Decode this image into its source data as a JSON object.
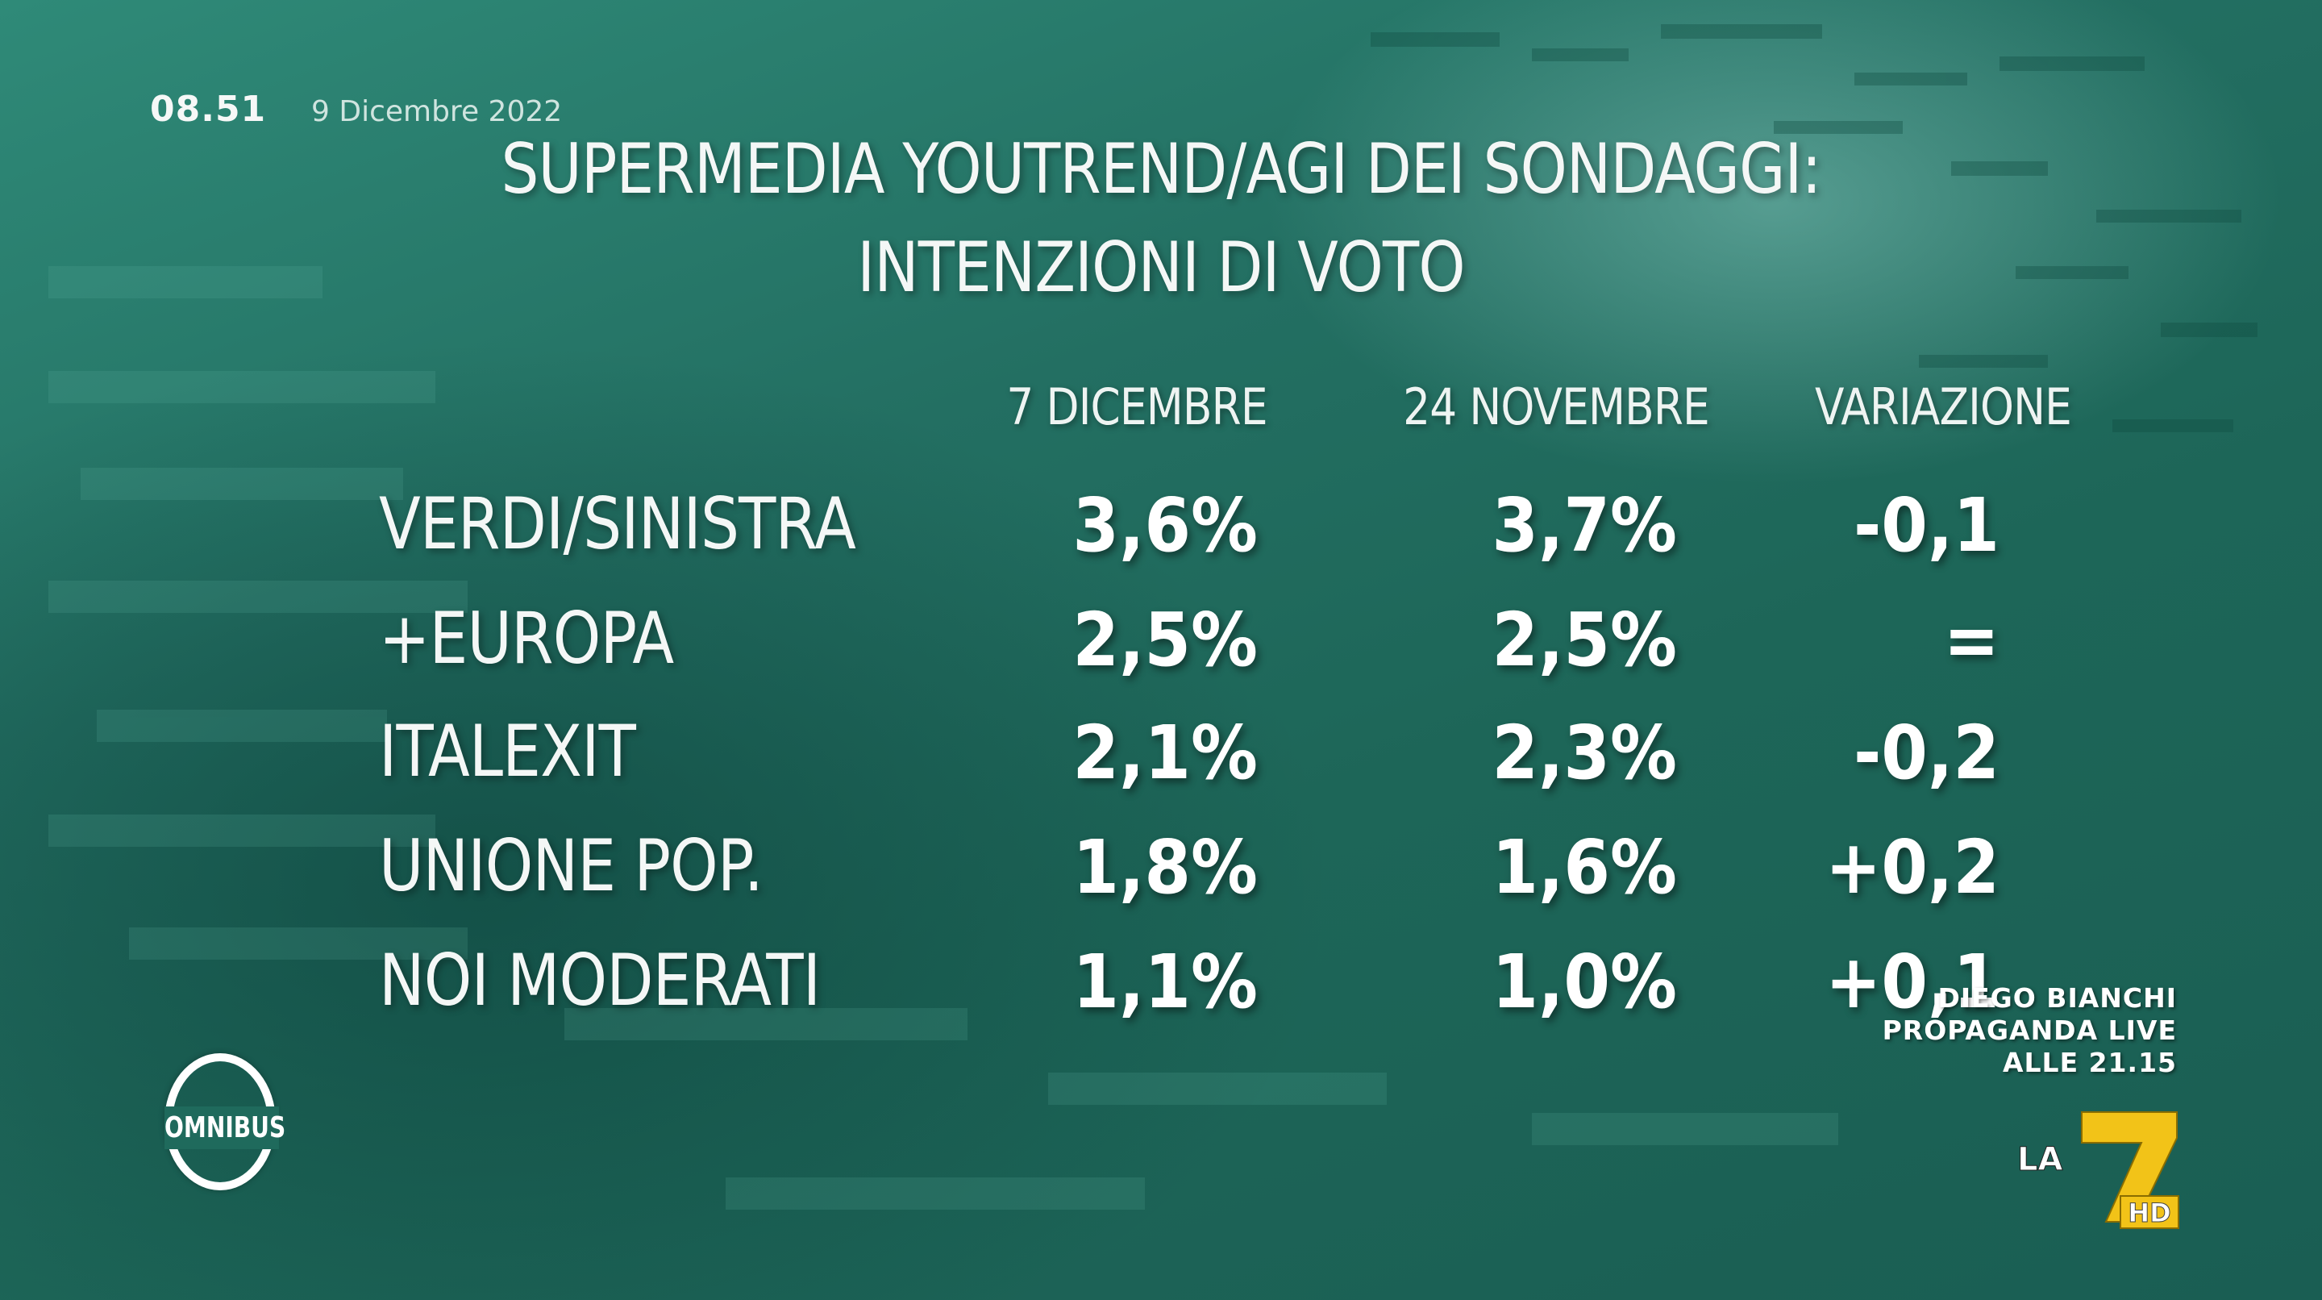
{
  "broadcast": {
    "clock": "08.51",
    "date": "9 Dicembre 2022"
  },
  "title": {
    "line1": "SUPERMEDIA YOUTREND/AGI DEI SONDAGGI:",
    "line2": "INTENZIONI DI VOTO"
  },
  "table": {
    "columns": [
      "7 DICEMBRE",
      "24 NOVEMBRE",
      "VARIAZIONE"
    ],
    "rows": [
      {
        "party": "VERDI/SINISTRA",
        "dec7": "3,6%",
        "nov24": "3,7%",
        "change": "-0,1"
      },
      {
        "party": "+EUROPA",
        "dec7": "2,5%",
        "nov24": "2,5%",
        "change": "="
      },
      {
        "party": "ITALEXIT",
        "dec7": "2,1%",
        "nov24": "2,3%",
        "change": "-0,2"
      },
      {
        "party": "UNIONE POP.",
        "dec7": "1,8%",
        "nov24": "1,6%",
        "change": "+0,2"
      },
      {
        "party": "NOI MODERATI",
        "dec7": "1,1%",
        "nov24": "1,0%",
        "change": "+0,1"
      }
    ]
  },
  "promo": {
    "line1": "DIEGO BIANCHI",
    "line2": "PROPAGANDA LIVE",
    "line3": "ALLE 21.15"
  },
  "logos": {
    "program": "OMNIBUS",
    "channel": "LA",
    "channel_number": "7",
    "channel_hd": "HD"
  },
  "colors": {
    "background": "#1e6b5c",
    "text": "#f4f7f6",
    "la7_yellow": "#f2c318"
  }
}
